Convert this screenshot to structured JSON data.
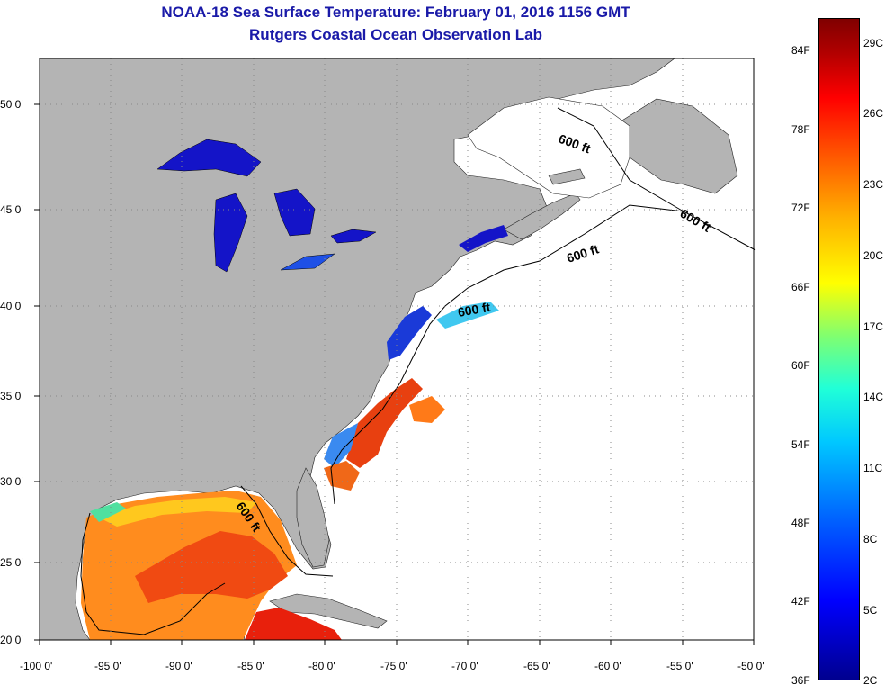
{
  "title": {
    "line1": "NOAA-18 Sea Surface Temperature:  February 01, 2016 1156 GMT",
    "line2": "Rutgers Coastal Ocean Observation Lab"
  },
  "map": {
    "lon_range": [
      -100,
      -50
    ],
    "lat_range": [
      20,
      52
    ],
    "x_ticks": [
      "-100 0'",
      "-95 0'",
      "-90 0'",
      "-85 0'",
      "-80 0'",
      "-75 0'",
      "-70 0'",
      "-65 0'",
      "-60 0'",
      "-55 0'",
      "-50 0'"
    ],
    "y_ticks": [
      "50 0'",
      "45 0'",
      "40 0'",
      "35 0'",
      "30 0'",
      "25 0'",
      "20 0'"
    ],
    "contour_labels": [
      "600 ft",
      "600 ft",
      "600 ft",
      "600 ft",
      "600 ft"
    ],
    "colors": {
      "land": "#b4b4b4",
      "ocean_nodata": "#ffffff",
      "grid": "#888888"
    }
  },
  "colorbar": {
    "fahrenheit_labels": [
      "84F",
      "78F",
      "72F",
      "66F",
      "60F",
      "54F",
      "48F",
      "42F",
      "36F"
    ],
    "celsius_labels": [
      "29C",
      "26C",
      "23C",
      "20C",
      "17C",
      "14C",
      "11C",
      "8C",
      "5C",
      "2C"
    ],
    "gradient": [
      "#00008f",
      "#0000ff",
      "#00c8ff",
      "#80ff70",
      "#ffff00",
      "#ff5000",
      "#ff0000",
      "#800000"
    ]
  }
}
